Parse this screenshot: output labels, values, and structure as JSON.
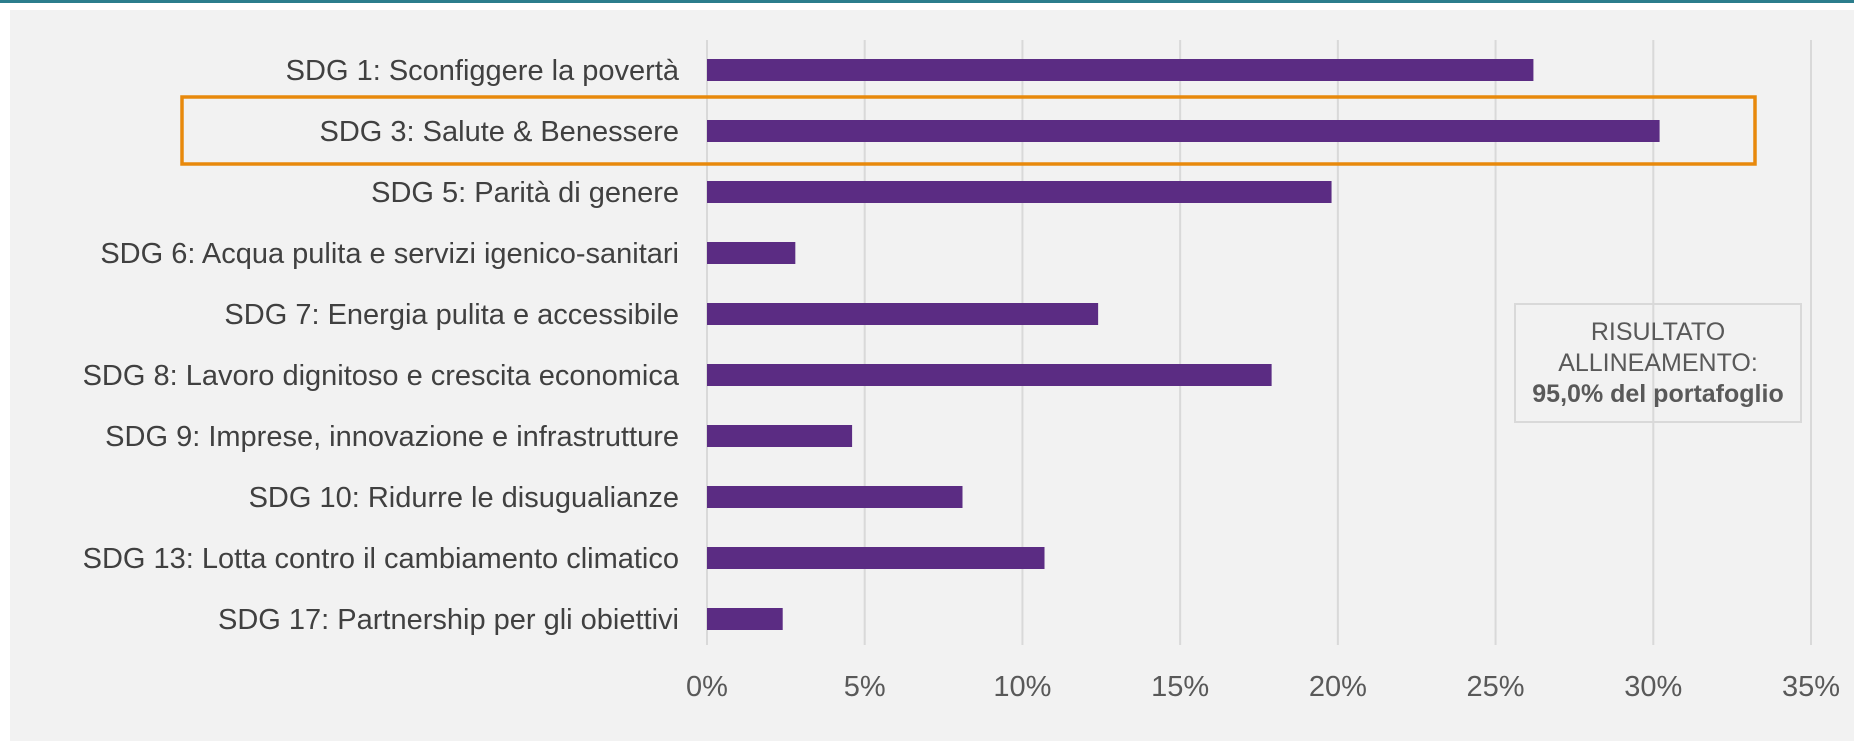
{
  "chart_data": {
    "type": "bar",
    "orientation": "horizontal",
    "categories": [
      "SDG 1: Sconfiggere la povertà",
      "SDG 3: Salute & Benessere",
      "SDG 5: Parità di genere",
      "SDG 6: Acqua pulita e servizi igenico-sanitari",
      "SDG 7: Energia pulita e accessibile",
      "SDG 8: Lavoro dignitoso e crescita economica",
      "SDG 9: Imprese, innovazione e infrastrutture",
      "SDG 10: Ridurre le disugualianze",
      "SDG 13: Lotta contro il cambiamento climatico",
      "SDG 17: Partnership per gli obiettivi"
    ],
    "values": [
      26.2,
      30.2,
      19.8,
      2.8,
      12.4,
      17.9,
      4.6,
      8.1,
      10.7,
      2.4
    ],
    "xticks": [
      "0%",
      "5%",
      "10%",
      "15%",
      "20%",
      "25%",
      "30%",
      "35%"
    ],
    "xlim": [
      0,
      35
    ],
    "grid": true,
    "highlighted_category": "SDG 3: Salute & Benessere",
    "colors": {
      "bar": "#5b2c83",
      "highlight": "#e8890c",
      "grid": "#d9d9d9"
    }
  },
  "annotation": {
    "line1": "RISULTATO",
    "line2": "ALLINEAMENTO:",
    "line3": "95,0% del portafoglio"
  }
}
